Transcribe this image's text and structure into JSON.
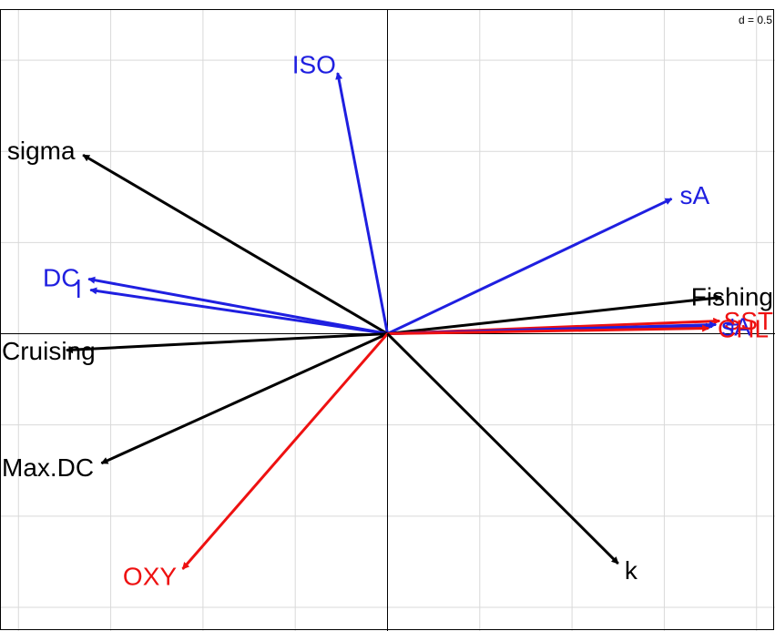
{
  "chart_data": {
    "type": "biplot",
    "scale_label": "d = 0.5",
    "xlim": [
      -2.1,
      2.1
    ],
    "ylim": [
      -1.63,
      1.78
    ],
    "grid": true,
    "grid_step": 0.5,
    "colors": {
      "black": "#000000",
      "blue": "#1f1fe0",
      "red": "#ee1111",
      "grid": "#d9d9d9"
    },
    "vectors": [
      {
        "label": "ISO",
        "x": -0.27,
        "y": 1.43,
        "color": "blue"
      },
      {
        "label": "sigma",
        "x": -1.65,
        "y": 0.98,
        "color": "black"
      },
      {
        "label": "sA",
        "x": 1.54,
        "y": 0.74,
        "color": "blue"
      },
      {
        "label": "DC",
        "x": -1.62,
        "y": 0.3,
        "color": "blue"
      },
      {
        "label": "l",
        "x": -1.61,
        "y": 0.24,
        "color": "blue"
      },
      {
        "label": "Fishing",
        "x": 1.81,
        "y": 0.2,
        "color": "black"
      },
      {
        "label": "SST",
        "x": 1.8,
        "y": 0.07,
        "color": "red"
      },
      {
        "label": "+",
        "x": 1.78,
        "y": 0.05,
        "color": "blue"
      },
      {
        "label": "sA",
        "x": 1.76,
        "y": 0.04,
        "color": "blue"
      },
      {
        "label": "CHL",
        "x": 1.74,
        "y": 0.03,
        "color": "red"
      },
      {
        "label": "Cruising",
        "x": -1.74,
        "y": -0.09,
        "color": "black"
      },
      {
        "label": "Max.DC",
        "x": -1.55,
        "y": -0.71,
        "color": "black"
      },
      {
        "label": "OXY",
        "x": -1.11,
        "y": -1.29,
        "color": "red"
      },
      {
        "label": "k",
        "x": 1.25,
        "y": -1.26,
        "color": "black"
      }
    ]
  }
}
